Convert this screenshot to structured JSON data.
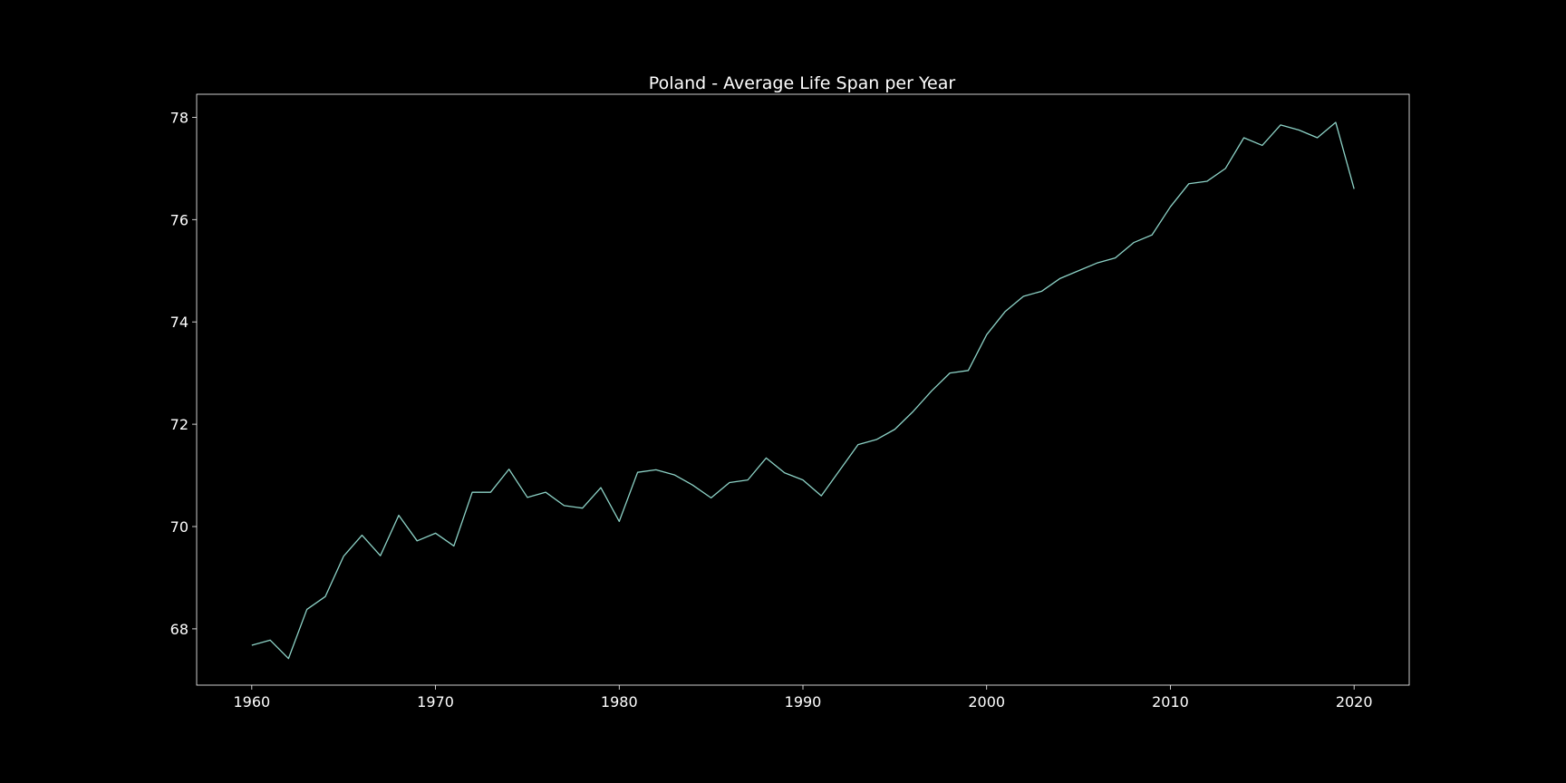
{
  "chart_data": {
    "type": "line",
    "title": "Poland - Average Life Span per Year",
    "xlabel": "",
    "ylabel": "",
    "xlim": [
      1957,
      2023
    ],
    "ylim": [
      66.9,
      78.45
    ],
    "x_ticks": [
      1960,
      1970,
      1980,
      1990,
      2000,
      2010,
      2020
    ],
    "y_ticks": [
      68,
      70,
      72,
      74,
      76,
      78
    ],
    "grid": false,
    "legend": "none",
    "colors": {
      "background": "#000000",
      "axes": "#ffffff",
      "text": "#ffffff",
      "line": "#8dd3c7"
    },
    "series": [
      {
        "x": [
          1960,
          1961,
          1962,
          1963,
          1964,
          1965,
          1966,
          1967,
          1968,
          1969,
          1970,
          1971,
          1972,
          1973,
          1974,
          1975,
          1976,
          1977,
          1978,
          1979,
          1980,
          1981,
          1982,
          1983,
          1984,
          1985,
          1986,
          1987,
          1988,
          1989,
          1990,
          1991,
          1992,
          1993,
          1994,
          1995,
          1996,
          1997,
          1998,
          1999,
          2000,
          2001,
          2002,
          2003,
          2004,
          2005,
          2006,
          2007,
          2008,
          2009,
          2010,
          2011,
          2012,
          2013,
          2014,
          2015,
          2016,
          2017,
          2018,
          2019,
          2020
        ],
        "y": [
          67.68,
          67.78,
          67.42,
          68.38,
          68.63,
          69.42,
          69.83,
          69.43,
          70.22,
          69.72,
          69.87,
          69.62,
          70.67,
          70.67,
          71.12,
          70.57,
          70.67,
          70.41,
          70.36,
          70.76,
          70.1,
          71.06,
          71.11,
          71.01,
          70.81,
          70.56,
          70.86,
          70.91,
          71.34,
          71.05,
          70.91,
          70.6,
          71.1,
          71.6,
          71.7,
          71.9,
          72.25,
          72.65,
          73.0,
          73.05,
          73.75,
          74.2,
          74.5,
          74.6,
          74.85,
          75.0,
          75.15,
          75.25,
          75.55,
          75.7,
          76.25,
          76.7,
          76.75,
          77.0,
          77.6,
          77.45,
          77.85,
          77.75,
          77.6,
          77.9,
          76.6
        ]
      }
    ]
  }
}
